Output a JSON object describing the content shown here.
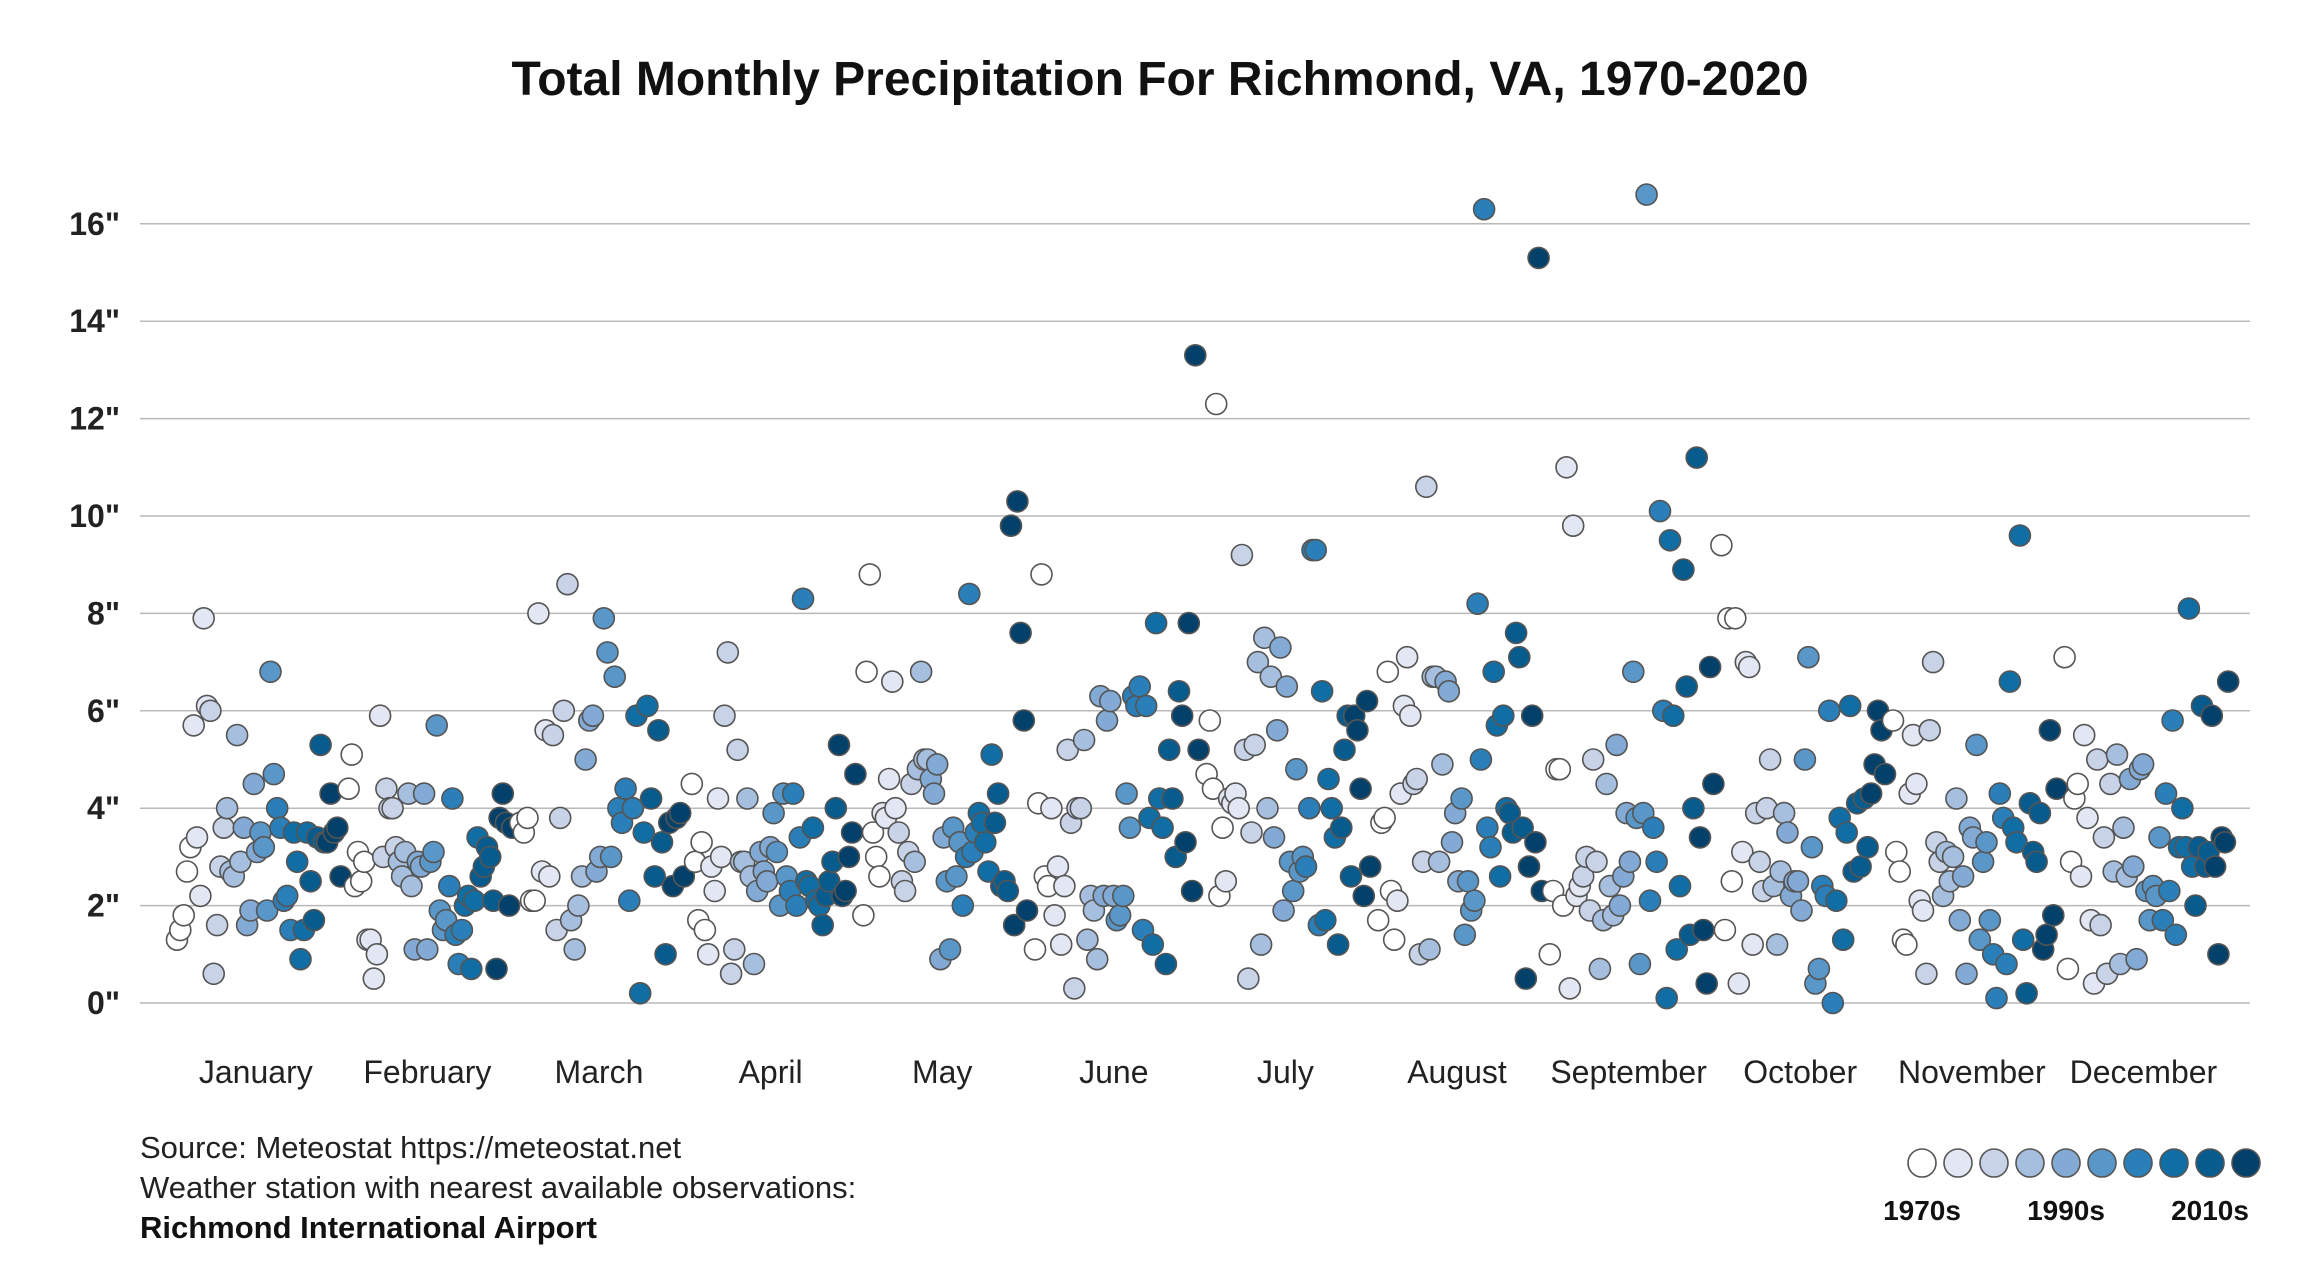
{
  "chart_data": {
    "type": "scatter",
    "title": "Total Monthly Precipitation For Richmond, VA, 1970-2020",
    "xlabel": "",
    "ylabel": "",
    "ylim": [
      0,
      17
    ],
    "y_ticks": [
      0,
      2,
      4,
      6,
      8,
      10,
      12,
      14,
      16
    ],
    "y_tick_labels": [
      "0\"",
      "2\"",
      "4\"",
      "6\"",
      "8\"",
      "10\"",
      "12\"",
      "14\"",
      "16\""
    ],
    "categories": [
      "January",
      "February",
      "March",
      "April",
      "May",
      "June",
      "July",
      "August",
      "September",
      "October",
      "November",
      "December"
    ],
    "decade_colors": [
      "#ffffff",
      "#e3e6f3",
      "#c9d3e8",
      "#a7bfde",
      "#82aad4",
      "#5997c9",
      "#2a7fb8",
      "#106ea4",
      "#075b8d",
      "#03416a"
    ],
    "legend": {
      "labels": [
        "1970s",
        "1990s",
        "2010s"
      ]
    },
    "series": [
      {
        "month": "January",
        "values": [
          1.3,
          1.5,
          1.8,
          2.7,
          3.2,
          5.7,
          3.4,
          2.2,
          7.9,
          6.1,
          6.0,
          0.6,
          1.6,
          2.8,
          3.6,
          4.0,
          2.7,
          2.6,
          5.5,
          2.9,
          3.6,
          1.6,
          1.9,
          4.5,
          3.1,
          3.5,
          3.2,
          1.9,
          6.8,
          4.7,
          4.0,
          3.6,
          2.1,
          2.2,
          1.5,
          3.5,
          2.9,
          0.9,
          1.5,
          3.5,
          2.5,
          1.7,
          3.4,
          5.3,
          3.3,
          3.3,
          4.3,
          3.5,
          3.6,
          2.6
        ]
      },
      {
        "month": "February",
        "values": [
          4.4,
          5.1,
          2.4,
          3.1,
          2.5,
          2.9,
          1.3,
          1.3,
          0.5,
          1.0,
          5.9,
          3.0,
          4.4,
          4.0,
          4.0,
          3.2,
          2.9,
          2.6,
          3.1,
          4.3,
          2.4,
          1.1,
          2.9,
          2.8,
          4.3,
          1.1,
          2.9,
          3.1,
          5.7,
          1.9,
          1.5,
          1.7,
          2.4,
          4.2,
          1.4,
          0.8,
          1.5,
          2.0,
          2.2,
          0.7,
          2.1,
          3.4,
          2.6,
          2.8,
          3.2,
          3.0,
          2.1,
          0.7,
          3.8,
          4.3,
          3.7,
          2.0,
          3.6
        ]
      },
      {
        "month": "March",
        "values": [
          3.7,
          3.5,
          3.8,
          2.1,
          2.1,
          8.0,
          2.7,
          5.6,
          2.6,
          5.5,
          1.5,
          3.8,
          6.0,
          8.6,
          1.7,
          1.1,
          2.0,
          2.6,
          5.0,
          5.8,
          5.9,
          2.7,
          3.0,
          7.9,
          7.2,
          3.0,
          6.7,
          4.0,
          3.7,
          4.4,
          2.1,
          4.0,
          5.9,
          0.2,
          3.5,
          6.1,
          4.2,
          2.6,
          5.6,
          3.3,
          1.0,
          3.7,
          2.4,
          3.8,
          3.9,
          2.6
        ]
      },
      {
        "month": "April",
        "values": [
          4.5,
          2.9,
          1.7,
          3.3,
          1.5,
          1.0,
          2.8,
          2.3,
          4.2,
          3.0,
          5.9,
          7.2,
          0.6,
          1.1,
          5.2,
          2.9,
          2.9,
          4.2,
          2.6,
          0.8,
          2.3,
          3.1,
          2.7,
          2.5,
          3.2,
          3.9,
          3.1,
          2.0,
          4.3,
          2.6,
          2.3,
          4.3,
          2.0,
          3.4,
          8.3,
          2.5,
          2.4,
          3.6,
          2.1,
          2.0,
          1.6,
          2.2,
          2.5,
          2.9,
          4.0,
          5.3,
          2.2,
          2.3,
          3.0,
          3.5,
          4.7
        ]
      },
      {
        "month": "May",
        "values": [
          1.8,
          6.8,
          8.8,
          3.5,
          3.0,
          2.6,
          3.9,
          3.8,
          4.6,
          6.6,
          4.0,
          3.5,
          2.5,
          2.3,
          3.1,
          4.5,
          2.9,
          4.8,
          6.8,
          5.0,
          5.0,
          4.6,
          4.3,
          4.9,
          0.9,
          3.4,
          2.5,
          1.1,
          3.6,
          2.6,
          3.3,
          2.0,
          3.0,
          8.4,
          3.1,
          3.5,
          3.9,
          3.7,
          3.3,
          2.7,
          5.1,
          3.7,
          4.3,
          2.4,
          2.5,
          2.3,
          9.8,
          1.6,
          10.3,
          7.6,
          5.8,
          1.9
        ]
      },
      {
        "month": "June",
        "values": [
          1.1,
          4.1,
          8.8,
          2.6,
          2.4,
          4.0,
          1.8,
          2.8,
          1.2,
          2.4,
          5.2,
          3.7,
          0.3,
          4.0,
          4.0,
          5.4,
          1.3,
          2.2,
          1.9,
          0.9,
          6.3,
          2.2,
          5.8,
          6.2,
          2.2,
          1.7,
          1.8,
          2.2,
          4.3,
          3.6,
          6.3,
          6.1,
          6.5,
          1.5,
          6.1,
          3.8,
          1.2,
          7.8,
          4.2,
          3.6,
          0.8,
          5.2,
          4.2,
          3.0,
          6.4,
          5.9,
          3.3,
          7.8,
          2.3,
          13.3,
          5.2
        ]
      },
      {
        "month": "July",
        "values": [
          4.7,
          5.8,
          4.4,
          12.3,
          2.2,
          3.6,
          2.5,
          4.2,
          4.1,
          4.3,
          4.0,
          9.2,
          5.2,
          0.5,
          3.5,
          5.3,
          7.0,
          1.2,
          7.5,
          4.0,
          6.7,
          3.4,
          5.6,
          7.3,
          1.9,
          6.5,
          2.9,
          2.3,
          4.8,
          2.7,
          3.0,
          2.8,
          4.0,
          9.3,
          9.3,
          1.6,
          6.4,
          1.7,
          4.6,
          4.0,
          3.4,
          1.2,
          3.6,
          5.2,
          5.9,
          2.6,
          5.9,
          5.6,
          4.4,
          2.2,
          6.2,
          2.8
        ]
      },
      {
        "month": "August",
        "values": [
          1.7,
          3.7,
          3.8,
          6.8,
          2.3,
          1.3,
          2.1,
          4.3,
          6.1,
          7.1,
          5.9,
          4.5,
          4.6,
          1.0,
          2.9,
          10.6,
          1.1,
          6.7,
          6.7,
          2.9,
          4.9,
          6.6,
          6.4,
          3.3,
          3.9,
          2.5,
          4.2,
          1.4,
          2.5,
          1.9,
          2.1,
          8.2,
          5.0,
          16.3,
          3.6,
          3.2,
          6.8,
          5.7,
          2.6,
          5.9,
          4.0,
          3.9,
          3.5,
          7.6,
          7.1,
          3.6,
          0.5,
          2.8,
          5.9,
          3.3,
          15.3,
          2.3
        ]
      },
      {
        "month": "September",
        "values": [
          1.0,
          2.3,
          4.8,
          4.8,
          2.0,
          11.0,
          0.3,
          9.8,
          2.2,
          2.4,
          2.6,
          3.0,
          1.9,
          5.0,
          2.9,
          0.7,
          1.7,
          4.5,
          2.4,
          1.8,
          5.3,
          2.0,
          2.6,
          3.9,
          2.9,
          6.8,
          3.8,
          0.8,
          3.9,
          16.6,
          2.1,
          3.6,
          2.9,
          10.1,
          6.0,
          0.1,
          9.5,
          5.9,
          1.1,
          2.4,
          8.9,
          6.5,
          1.4,
          4.0,
          11.2,
          3.4,
          1.5,
          0.4,
          6.9,
          4.5
        ]
      },
      {
        "month": "October",
        "values": [
          9.4,
          1.5,
          7.9,
          2.5,
          7.9,
          0.4,
          3.1,
          7.0,
          6.9,
          1.2,
          3.9,
          2.9,
          2.3,
          4.0,
          5.0,
          2.4,
          1.2,
          2.7,
          3.9,
          3.5,
          2.2,
          2.5,
          2.5,
          1.9,
          5.0,
          7.1,
          3.2,
          0.4,
          0.7,
          2.4,
          2.2,
          6.0,
          0.0,
          2.1,
          3.8,
          1.3,
          3.5,
          6.1,
          2.7,
          4.1,
          2.8,
          4.2,
          3.2,
          4.3,
          4.9,
          6.0,
          5.6,
          4.7
        ]
      },
      {
        "month": "November",
        "values": [
          5.8,
          3.1,
          2.7,
          1.3,
          1.2,
          4.3,
          5.5,
          4.5,
          2.1,
          1.9,
          0.6,
          5.6,
          7.0,
          3.3,
          2.9,
          2.2,
          3.1,
          2.5,
          3.0,
          4.2,
          1.7,
          2.6,
          0.6,
          3.6,
          3.4,
          5.3,
          1.3,
          2.9,
          3.3,
          1.7,
          1.0,
          0.1,
          4.3,
          3.8,
          0.8,
          6.6,
          3.6,
          3.3,
          9.6,
          1.3,
          0.2,
          4.1,
          3.1,
          2.9,
          3.9,
          1.1,
          1.4,
          5.6,
          1.8,
          4.4
        ]
      },
      {
        "month": "December",
        "values": [
          7.1,
          0.7,
          2.9,
          4.2,
          4.5,
          2.6,
          5.5,
          3.8,
          1.7,
          0.4,
          5.0,
          1.6,
          3.4,
          0.6,
          4.5,
          2.7,
          5.1,
          0.8,
          3.6,
          2.6,
          4.6,
          2.8,
          0.9,
          4.8,
          4.9,
          2.3,
          1.7,
          2.4,
          2.2,
          3.4,
          1.7,
          4.3,
          2.3,
          5.8,
          1.4,
          3.2,
          4.0,
          3.2,
          8.1,
          2.8,
          2.0,
          3.2,
          6.1,
          2.8,
          3.1,
          5.9,
          2.8,
          1.0,
          3.4,
          3.3,
          6.6
        ]
      }
    ]
  },
  "source": {
    "line1": "Source: Meteostat https://meteostat.net",
    "line2": "Weather station with nearest available observations:",
    "line3": "Richmond International Airport"
  }
}
